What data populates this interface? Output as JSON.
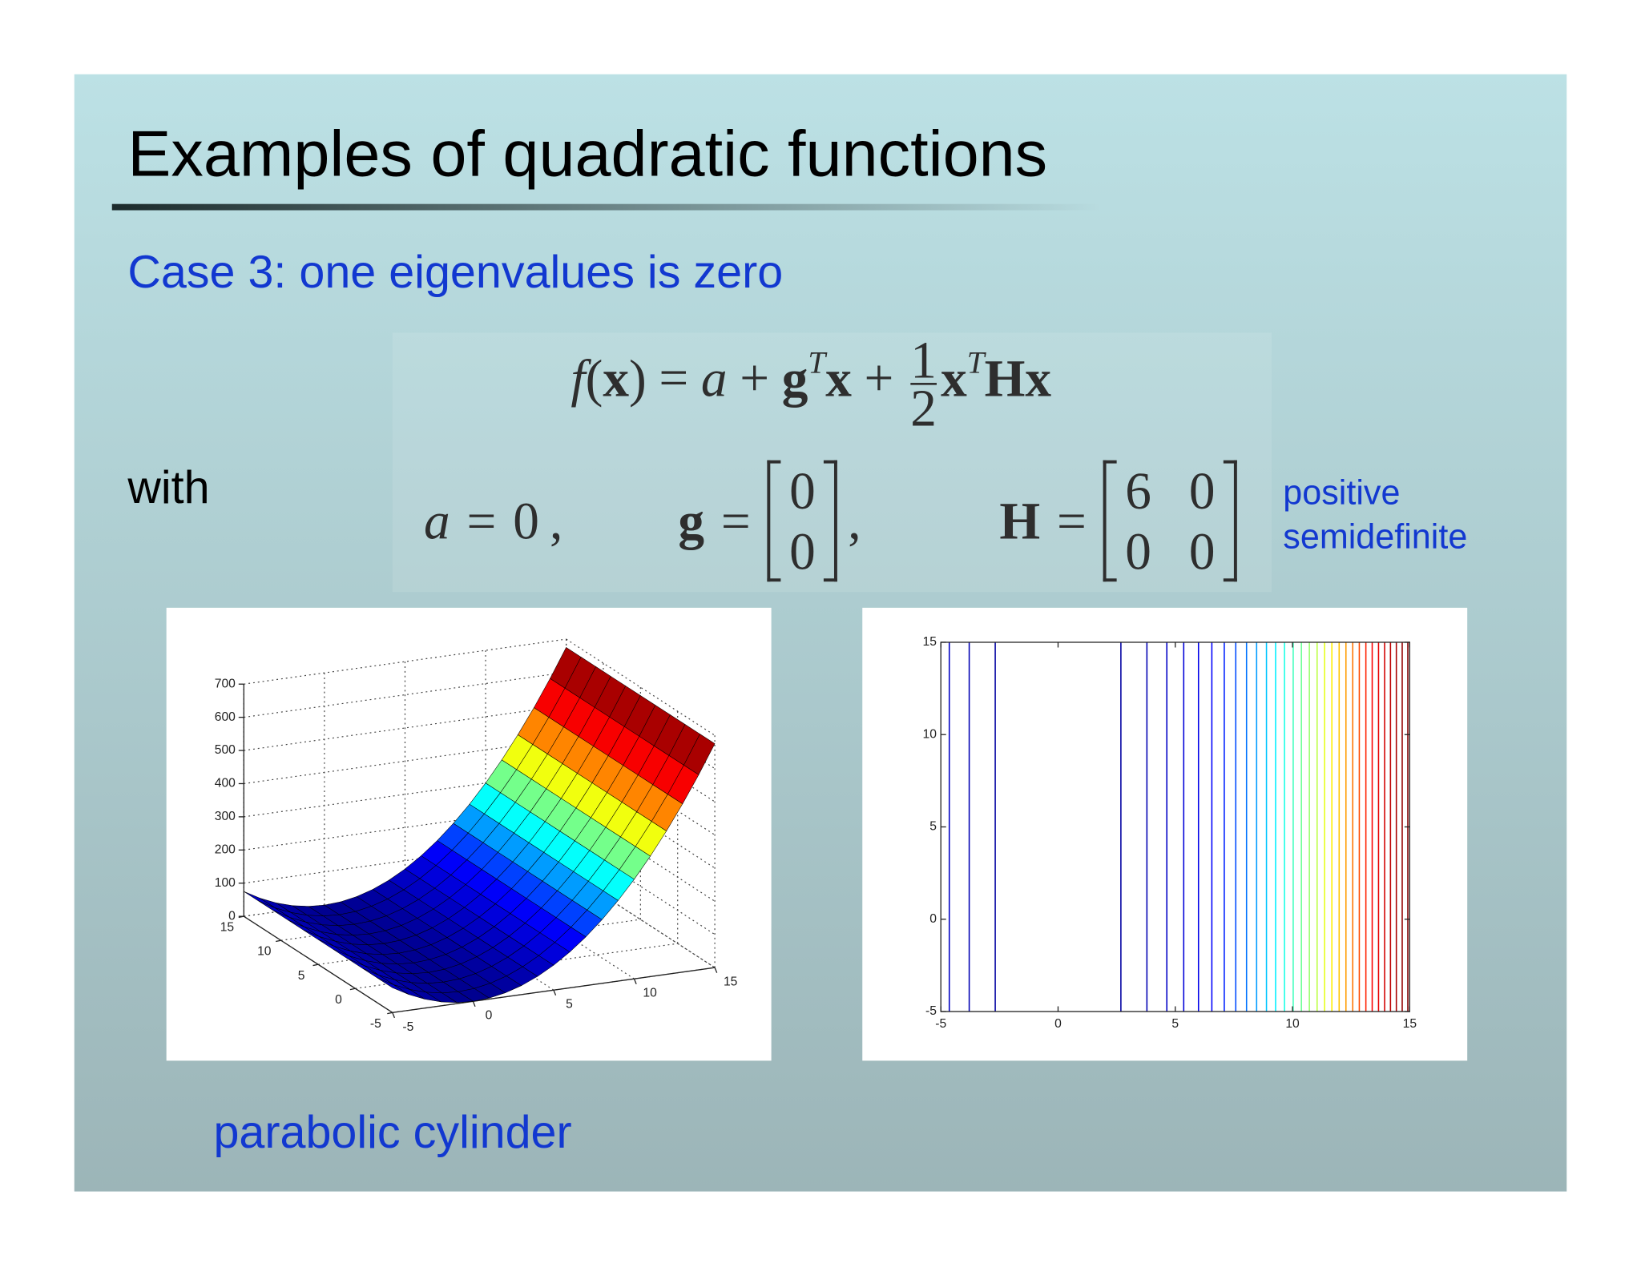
{
  "slide": {
    "title": "Examples of quadratic functions",
    "subtitle": "Case 3: one eigenvalues is zero",
    "formula": [
      {
        "text": "f",
        "style": "italic"
      },
      {
        "text": "(",
        "style": "roman"
      },
      {
        "text": "x",
        "style": "bold"
      },
      {
        "text": ")",
        "style": "roman"
      },
      {
        "text": "=",
        "style": "op"
      },
      {
        "text": "a",
        "style": "italic"
      },
      {
        "text": "+",
        "style": "op"
      },
      {
        "text": "g",
        "style": "bold"
      },
      {
        "text": "T",
        "style": "sup"
      },
      {
        "text": "x",
        "style": "bold"
      },
      {
        "text": "+",
        "style": "op"
      },
      {
        "numerator": "1",
        "denominator": "2"
      },
      {
        "text": "x",
        "style": "bold"
      },
      {
        "text": "T",
        "style": "sup"
      },
      {
        "text": "H",
        "style": "bold"
      },
      {
        "text": "x",
        "style": "bold"
      }
    ],
    "with": "with",
    "equals": "=",
    "definitions": [
      {
        "name": "a",
        "style": "italic",
        "value": 0,
        "sep": ","
      },
      {
        "name": "g",
        "style": "bold",
        "vector": [
          0,
          0
        ],
        "sep": ","
      },
      {
        "name": "H",
        "style": "bold",
        "matrix": [
          [
            6,
            0
          ],
          [
            0,
            0
          ]
        ]
      }
    ],
    "note": [
      "positive",
      "semidefinite"
    ],
    "caption": "parabolic cylinder"
  },
  "chart_data": [
    {
      "type": "surface",
      "x": [
        -5,
        -4,
        -3,
        -2,
        -1,
        0,
        1,
        2,
        3,
        4,
        5,
        6,
        7,
        8,
        9,
        10,
        11,
        12,
        13,
        14,
        15
      ],
      "z": [
        75,
        48,
        27,
        12,
        3,
        0,
        3,
        12,
        27,
        48,
        75,
        108,
        147,
        192,
        243,
        300,
        363,
        432,
        507,
        588,
        675
      ],
      "xlim": [
        -5,
        15
      ],
      "ylim": [
        -5,
        15
      ],
      "zlim": [
        0,
        700
      ],
      "xticks": [
        -5,
        0,
        5,
        10,
        15
      ],
      "yticks": [
        -5,
        0,
        5,
        10,
        15
      ],
      "zticks": [
        0,
        100,
        200,
        300,
        400,
        500,
        600,
        700
      ],
      "grid": true,
      "colormap": [
        "#00008f",
        "#0000ff",
        "#00ffff",
        "#ffff00",
        "#ff0000",
        "#800000"
      ]
    },
    {
      "type": "contour",
      "x": [
        -4.64,
        -3.79,
        -2.68,
        2.68,
        3.79,
        4.64,
        5.36,
        5.99,
        6.56,
        7.09,
        7.58,
        8.04,
        8.47,
        8.89,
        9.28,
        9.66,
        10.03,
        10.38,
        10.72,
        11.05,
        11.37,
        11.68,
        11.99,
        12.28,
        12.57,
        12.85,
        13.13,
        13.4,
        13.67,
        13.93,
        14.18,
        14.43,
        14.68,
        14.92
      ],
      "levels": [
        64.5,
        43,
        21.5,
        21.5,
        43,
        64.5,
        86,
        107.5,
        129,
        150.5,
        172,
        193.5,
        215,
        236.5,
        258,
        279.5,
        301,
        322.5,
        344,
        365.5,
        387,
        408.5,
        430,
        451.5,
        473,
        494.5,
        516,
        537.5,
        559,
        580.5,
        602,
        623.5,
        645,
        666.5
      ],
      "xlim": [
        -5,
        15
      ],
      "ylim": [
        -5,
        15
      ],
      "xticks": [
        -5,
        0,
        5,
        10,
        15
      ],
      "yticks": [
        -5,
        0,
        5,
        10,
        15
      ],
      "colormap": [
        "#00008f",
        "#0000ff",
        "#00ffff",
        "#ffff00",
        "#ff0000",
        "#800000"
      ]
    }
  ]
}
